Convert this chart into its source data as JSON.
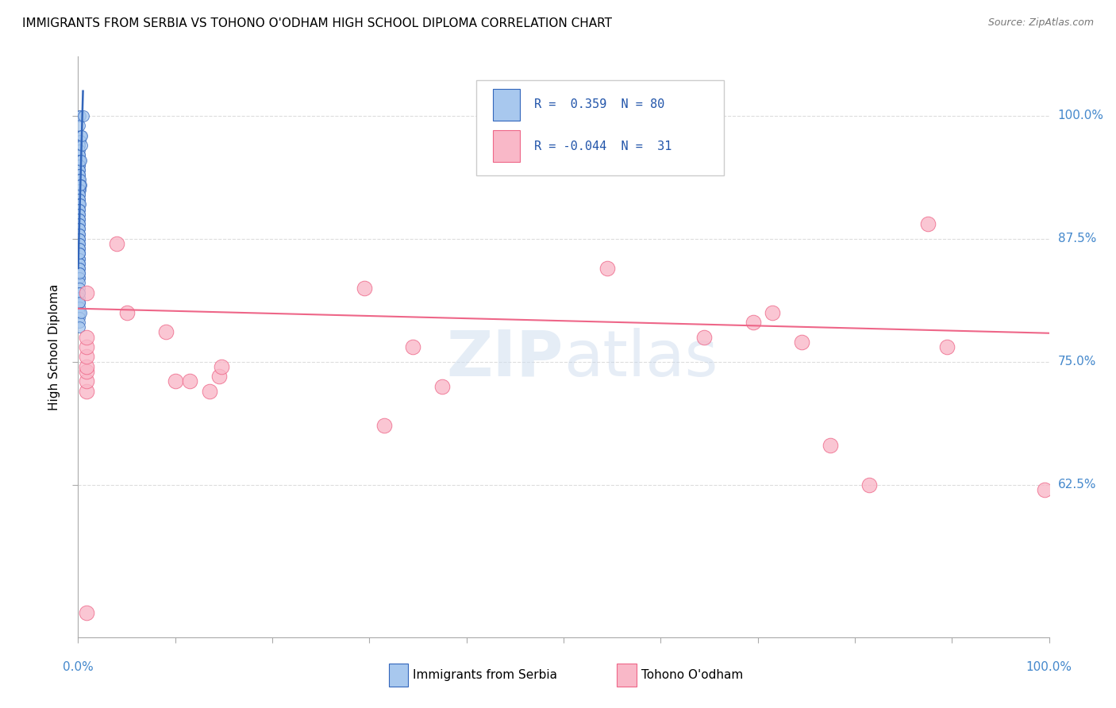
{
  "title": "IMMIGRANTS FROM SERBIA VS TOHONO O'ODHAM HIGH SCHOOL DIPLOMA CORRELATION CHART",
  "source": "Source: ZipAtlas.com",
  "ylabel": "High School Diploma",
  "ytick_labels": [
    "100.0%",
    "87.5%",
    "75.0%",
    "62.5%"
  ],
  "ytick_values": [
    1.0,
    0.875,
    0.75,
    0.625
  ],
  "xlim": [
    0.0,
    1.0
  ],
  "ylim": [
    0.47,
    1.06
  ],
  "color_blue": "#A8C8EE",
  "color_pink": "#F9B8C8",
  "color_line_blue": "#3366BB",
  "color_line_pink": "#EE6688",
  "color_grid": "#DDDDDD",
  "serbia_x": [
    0.001,
    0.002,
    0.001,
    0.003,
    0.002,
    0.001,
    0.001,
    0.001,
    0.001,
    0.001,
    0.001,
    0.002,
    0.001,
    0.001,
    0.001,
    0.001,
    0.001,
    0.001,
    0.001,
    0.002,
    0.002,
    0.003,
    0.002,
    0.001,
    0.001,
    0.001,
    0.001,
    0.001,
    0.001,
    0.001,
    0.002,
    0.001,
    0.001,
    0.001,
    0.001,
    0.001,
    0.001,
    0.001,
    0.001,
    0.001,
    0.001,
    0.001,
    0.001,
    0.001,
    0.001,
    0.001,
    0.001,
    0.001,
    0.001,
    0.001,
    0.001,
    0.001,
    0.001,
    0.001,
    0.001,
    0.001,
    0.001,
    0.001,
    0.001,
    0.001,
    0.001,
    0.001,
    0.001,
    0.001,
    0.001,
    0.001,
    0.001,
    0.001,
    0.001,
    0.001,
    0.005,
    0.004,
    0.003,
    0.002,
    0.001,
    0.001,
    0.003,
    0.004,
    0.001,
    0.001
  ],
  "serbia_y": [
    1.0,
    1.0,
    0.99,
    0.98,
    0.975,
    0.97,
    0.97,
    0.965,
    0.96,
    0.96,
    0.955,
    0.955,
    0.95,
    0.95,
    0.945,
    0.945,
    0.94,
    0.94,
    0.935,
    0.935,
    0.93,
    0.93,
    0.925,
    0.925,
    0.92,
    0.92,
    0.915,
    0.915,
    0.91,
    0.91,
    0.91,
    0.905,
    0.905,
    0.9,
    0.9,
    0.895,
    0.895,
    0.89,
    0.89,
    0.885,
    0.885,
    0.88,
    0.88,
    0.875,
    0.875,
    0.87,
    0.87,
    0.865,
    0.865,
    0.86,
    0.86,
    0.855,
    0.855,
    0.85,
    0.85,
    0.845,
    0.845,
    0.84,
    0.835,
    0.835,
    0.83,
    0.825,
    0.82,
    0.815,
    0.81,
    0.805,
    0.8,
    0.795,
    0.79,
    0.785,
    1.0,
    0.97,
    0.955,
    0.93,
    0.82,
    0.81,
    0.8,
    0.98,
    0.86,
    0.84
  ],
  "tohono_x": [
    0.009,
    0.009,
    0.009,
    0.009,
    0.009,
    0.009,
    0.009,
    0.009,
    0.009,
    0.04,
    0.05,
    0.09,
    0.1,
    0.115,
    0.135,
    0.145,
    0.148,
    0.295,
    0.315,
    0.345,
    0.375,
    0.545,
    0.645,
    0.695,
    0.715,
    0.745,
    0.775,
    0.815,
    0.875,
    0.895,
    0.995
  ],
  "tohono_y": [
    0.495,
    0.72,
    0.73,
    0.74,
    0.745,
    0.755,
    0.765,
    0.775,
    0.82,
    0.87,
    0.8,
    0.78,
    0.73,
    0.73,
    0.72,
    0.735,
    0.745,
    0.825,
    0.685,
    0.765,
    0.725,
    0.845,
    0.775,
    0.79,
    0.8,
    0.77,
    0.665,
    0.625,
    0.89,
    0.765,
    0.62
  ],
  "serbia_trendline_x": [
    0.0,
    0.005
  ],
  "serbia_trendline_y": [
    0.845,
    1.025
  ],
  "tohono_trendline_x": [
    0.0,
    1.0
  ],
  "tohono_trendline_y": [
    0.804,
    0.779
  ]
}
